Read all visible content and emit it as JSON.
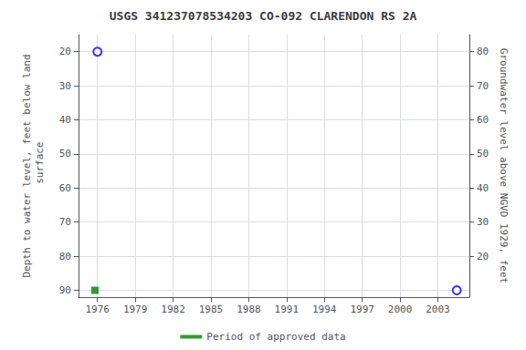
{
  "chart_data": {
    "type": "scatter",
    "title": "USGS 341237078534203 CO-092 CLARENDON RS 2A",
    "ylabel": "Depth to water level, feet below land\n surface",
    "y2label": "Groundwater level above NGVD 1929, feet",
    "xlim": [
      1974.5,
      2005.5
    ],
    "xticks": [
      1976,
      1979,
      1982,
      1985,
      1988,
      1991,
      1994,
      1997,
      2000,
      2003
    ],
    "ylim": [
      92.0,
      15.0
    ],
    "yticks": [
      20,
      30,
      40,
      50,
      60,
      70,
      80,
      90
    ],
    "y2lim": [
      8,
      85
    ],
    "y2ticks": [
      80,
      70,
      60,
      50,
      40,
      30,
      20
    ],
    "grid": true,
    "legend": "bottom",
    "series": [
      {
        "color": "#0000ff",
        "marker": "open circle",
        "x": [
          1976.0,
          2004.5
        ],
        "values": [
          20.0,
          90.0
        ]
      },
      {
        "name": "Period of approved data",
        "color": "#008000",
        "marker": "square",
        "x": [
          1975.8
        ],
        "values": [
          90.0
        ]
      }
    ]
  }
}
